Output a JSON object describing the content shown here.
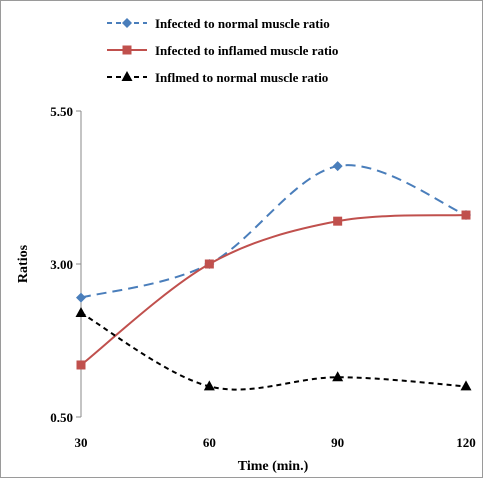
{
  "chart_data": {
    "type": "line",
    "title": "",
    "xlabel": "Time (min.)",
    "ylabel": "Ratios",
    "x": [
      30,
      60,
      90,
      120
    ],
    "xlim": [
      30,
      120
    ],
    "ylim": [
      0.5,
      5.5
    ],
    "x_ticks": [
      "30",
      "60",
      "90",
      "120"
    ],
    "y_ticks": [
      "0.50",
      "3.00",
      "5.50"
    ],
    "y_tick_values": [
      0.5,
      3.0,
      5.5
    ],
    "grid": false,
    "legend_position": "top-left",
    "series": [
      {
        "name": "Infected to normal muscle ratio",
        "values": [
          2.45,
          3.0,
          4.6,
          3.8
        ],
        "color": "#4a7ebb",
        "line_style": "dashed",
        "marker": "diamond"
      },
      {
        "name": "Infected to inflamed muscle ratio",
        "values": [
          1.35,
          3.0,
          3.7,
          3.8
        ],
        "color": "#c0504d",
        "line_style": "solid",
        "marker": "square"
      },
      {
        "name": "Inflmed to normal muscle ratio",
        "values": [
          2.2,
          1.0,
          1.15,
          1.0
        ],
        "color": "#000000",
        "line_style": "dashed",
        "marker": "triangle"
      }
    ]
  }
}
